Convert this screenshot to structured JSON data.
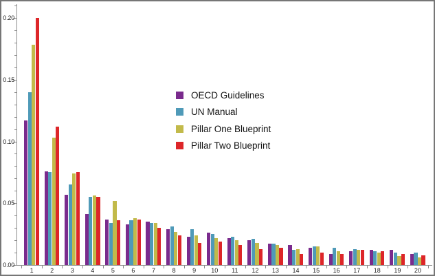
{
  "chart_data": {
    "type": "bar",
    "title": "",
    "xlabel": "",
    "ylabel": "",
    "categories": [
      "1",
      "2",
      "3",
      "4",
      "5",
      "6",
      "7",
      "8",
      "9",
      "10",
      "11",
      "12",
      "13",
      "14",
      "15",
      "16",
      "17",
      "18",
      "19",
      "20"
    ],
    "series": [
      {
        "name": "OECD Guidelines",
        "color": "#7A2B8D",
        "values": [
          0.117,
          0.076,
          0.057,
          0.041,
          0.037,
          0.033,
          0.035,
          0.029,
          0.023,
          0.026,
          0.022,
          0.02,
          0.017,
          0.016,
          0.014,
          0.009,
          0.011,
          0.012,
          0.012,
          0.009
        ]
      },
      {
        "name": "UN Manual",
        "color": "#4F9AB8",
        "values": [
          0.14,
          0.075,
          0.065,
          0.055,
          0.034,
          0.036,
          0.034,
          0.031,
          0.029,
          0.025,
          0.023,
          0.021,
          0.017,
          0.012,
          0.015,
          0.014,
          0.013,
          0.011,
          0.01,
          0.01
        ]
      },
      {
        "name": "Pillar One Blueprint",
        "color": "#C2BA4A",
        "values": [
          0.178,
          0.103,
          0.074,
          0.056,
          0.052,
          0.038,
          0.034,
          0.027,
          0.024,
          0.022,
          0.02,
          0.018,
          0.016,
          0.013,
          0.015,
          0.011,
          0.012,
          0.01,
          0.007,
          0.006
        ]
      },
      {
        "name": "Pillar Two Blueprint",
        "color": "#DD2629",
        "values": [
          0.2,
          0.112,
          0.075,
          0.055,
          0.036,
          0.037,
          0.03,
          0.024,
          0.018,
          0.019,
          0.016,
          0.013,
          0.014,
          0.009,
          0.01,
          0.009,
          0.012,
          0.011,
          0.009,
          0.008
        ]
      }
    ],
    "y_ticks": [
      {
        "value": 0.0,
        "label": "0.00"
      },
      {
        "value": 0.05,
        "label": "0.05"
      },
      {
        "value": 0.1,
        "label": "0.10"
      },
      {
        "value": 0.15,
        "label": "0.15"
      },
      {
        "value": 0.2,
        "label": "0.20"
      }
    ],
    "y_minor_step": 0.01,
    "ylim": [
      0,
      0.211
    ],
    "grid": false,
    "legend_position": "upper-center-left",
    "frame_border_color": "#767676",
    "axis_color": "#8a8a8a",
    "background_color": "#ffffff"
  }
}
